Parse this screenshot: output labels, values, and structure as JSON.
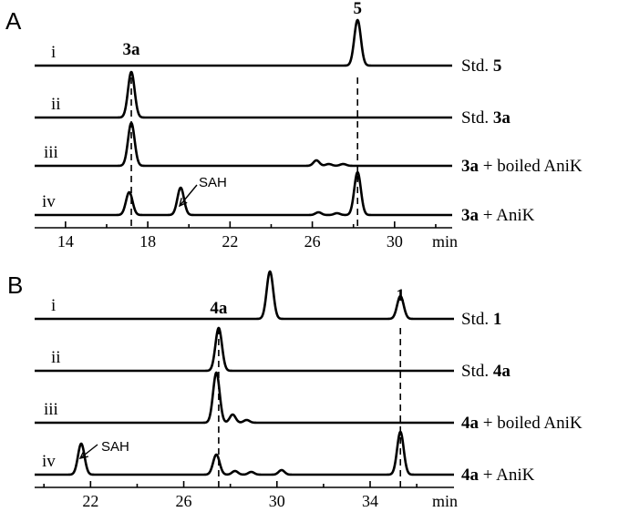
{
  "chart_data": [
    {
      "type": "line",
      "panel": "A",
      "xunit": "min",
      "xlim": [
        12.5,
        32.8
      ],
      "xticks": [
        14,
        18,
        22,
        26,
        30
      ],
      "traces": [
        {
          "roman": "i",
          "label_prefix": "Std.",
          "label_bold": "5",
          "label_suffix": "",
          "peaks": [
            {
              "x": 28.2,
              "h": 50
            }
          ]
        },
        {
          "roman": "ii",
          "label_prefix": "Std.",
          "label_bold": "3a",
          "label_suffix": "",
          "peaks": [
            {
              "x": 17.2,
              "h": 50
            }
          ]
        },
        {
          "roman": "iii",
          "label_prefix": "",
          "label_bold": "3a",
          "label_suffix": " + boiled AniK",
          "peaks": [
            {
              "x": 17.2,
              "h": 47
            },
            {
              "x": 26.2,
              "h": 6
            },
            {
              "x": 26.8,
              "h": 2
            },
            {
              "x": 27.5,
              "h": 2
            }
          ]
        },
        {
          "roman": "iv",
          "label_prefix": "",
          "label_bold": "3a",
          "label_suffix": " + AniK",
          "peaks": [
            {
              "x": 17.1,
              "h": 25
            },
            {
              "x": 19.6,
              "h": 30
            },
            {
              "x": 26.3,
              "h": 3
            },
            {
              "x": 27.2,
              "h": 2
            },
            {
              "x": 28.2,
              "h": 47
            }
          ]
        }
      ],
      "peak_labels": [
        {
          "text": "3a",
          "x": 17.2
        },
        {
          "text": "5",
          "x": 28.2
        }
      ],
      "dashed_lines": [
        17.2,
        28.2
      ],
      "annotation": {
        "text": "SAH",
        "x": 19.6
      }
    },
    {
      "type": "line",
      "panel": "B",
      "xunit": "min",
      "xlim": [
        19.6,
        37.6
      ],
      "xticks": [
        22,
        26,
        30,
        34
      ],
      "traces": [
        {
          "roman": "i",
          "label_prefix": "Std.",
          "label_bold": "1",
          "label_suffix": "",
          "peaks": [
            {
              "x": 29.7,
              "h": 52
            },
            {
              "x": 35.3,
              "h": 25
            }
          ]
        },
        {
          "roman": "ii",
          "label_prefix": "Std.",
          "label_bold": "4a",
          "label_suffix": "",
          "peaks": [
            {
              "x": 27.5,
              "h": 47
            }
          ]
        },
        {
          "roman": "iii",
          "label_prefix": "",
          "label_bold": "4a",
          "label_suffix": " + boiled AniK",
          "peaks": [
            {
              "x": 27.4,
              "h": 55
            },
            {
              "x": 28.1,
              "h": 9
            },
            {
              "x": 28.7,
              "h": 3
            }
          ]
        },
        {
          "roman": "iv",
          "label_prefix": "",
          "label_bold": "4a",
          "label_suffix": " + AniK",
          "peaks": [
            {
              "x": 21.6,
              "h": 34
            },
            {
              "x": 27.4,
              "h": 22
            },
            {
              "x": 28.2,
              "h": 4
            },
            {
              "x": 28.9,
              "h": 3
            },
            {
              "x": 30.2,
              "h": 5
            },
            {
              "x": 35.3,
              "h": 47
            }
          ]
        }
      ],
      "peak_labels": [
        {
          "text": "4a",
          "x": 27.5
        },
        {
          "text": "1",
          "x": 35.3
        }
      ],
      "dashed_lines": [
        27.5,
        35.3
      ],
      "annotation": {
        "text": "SAH",
        "x": 21.6
      }
    }
  ]
}
